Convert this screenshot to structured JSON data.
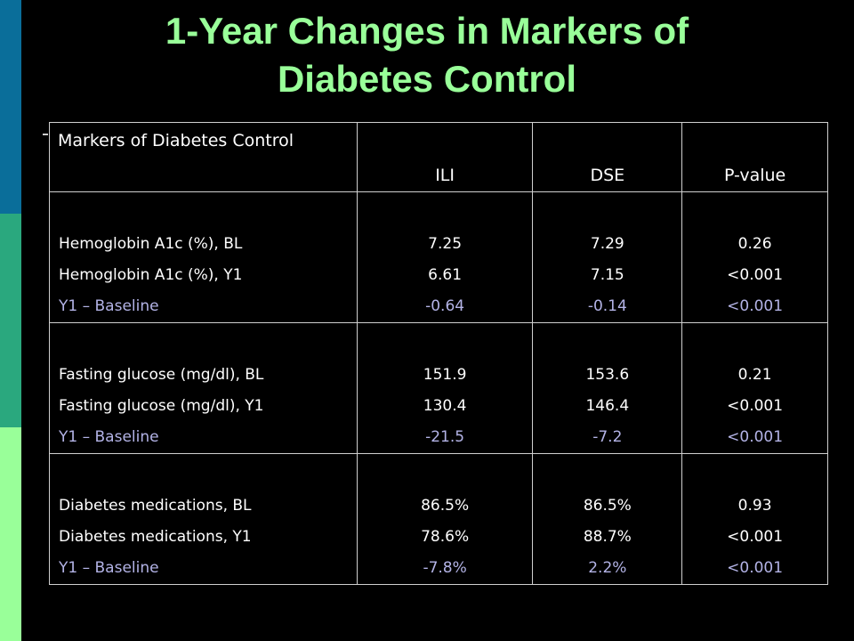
{
  "title": {
    "line1": "1-Year Changes in Markers of",
    "line2": "Diabetes Control"
  },
  "colors": {
    "title": "#99ff99",
    "background": "#000000",
    "diff_row": "#b3b3e6",
    "stripe_top": "#0a6e9a",
    "stripe_middle": "#2aa87e",
    "stripe_bottom": "#99ff99"
  },
  "table": {
    "headers": [
      "Markers of Diabetes Control",
      "ILI",
      "DSE",
      "P-value"
    ],
    "groups": [
      {
        "rows": [
          {
            "label": "Hemoglobin A1c (%), BL",
            "ili": "7.25",
            "dse": "7.29",
            "p": "0.26"
          },
          {
            "label": "Hemoglobin A1c (%), Y1",
            "ili": "6.61",
            "dse": "7.15",
            "p": "<0.001"
          },
          {
            "label": "Y1 – Baseline",
            "ili": "-0.64",
            "dse": "-0.14",
            "p": "<0.001"
          }
        ]
      },
      {
        "rows": [
          {
            "label": "Fasting glucose (mg/dl), BL",
            "ili": "151.9",
            "dse": "153.6",
            "p": "0.21"
          },
          {
            "label": "Fasting glucose (mg/dl), Y1",
            "ili": "130.4",
            "dse": "146.4",
            "p": "<0.001"
          },
          {
            "label": "Y1 – Baseline",
            "ili": "-21.5",
            "dse": "-7.2",
            "p": "<0.001"
          }
        ]
      },
      {
        "rows": [
          {
            "label": "Diabetes medications, BL",
            "ili": "86.5%",
            "dse": "86.5%",
            "p": "0.93"
          },
          {
            "label": "Diabetes medications, Y1",
            "ili": "78.6%",
            "dse": "88.7%",
            "p": "<0.001"
          },
          {
            "label": "Y1 – Baseline",
            "ili": "-7.8%",
            "dse": "2.2%",
            "p": "<0.001"
          }
        ]
      }
    ]
  }
}
